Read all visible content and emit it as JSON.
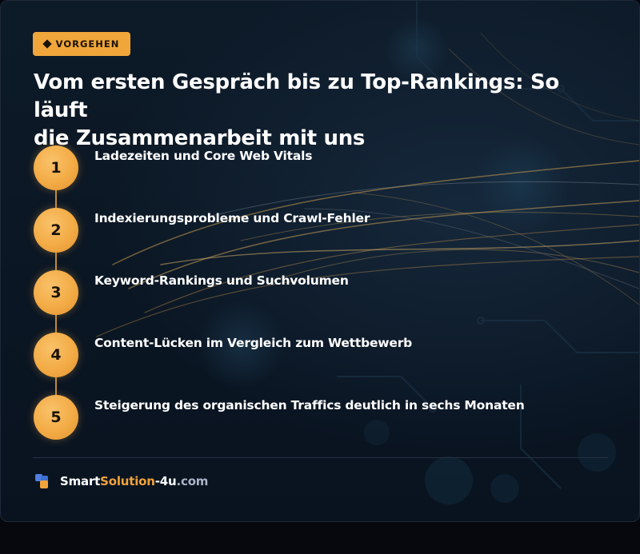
{
  "badge": {
    "icon": "diamond-icon",
    "label": "VORGEHEN"
  },
  "title": {
    "line1": "Vom ersten Gespräch bis zu Top-Rankings: So läuft",
    "line2": "die Zusammenarbeit mit uns"
  },
  "steps": [
    {
      "number": "1",
      "label": "Ladezeiten und Core Web Vitals"
    },
    {
      "number": "2",
      "label": "Indexierungsprobleme und Crawl-Fehler"
    },
    {
      "number": "3",
      "label": "Keyword-Rankings und Suchvolumen"
    },
    {
      "number": "4",
      "label": "Content-Lücken im Vergleich zum Wettbewerb"
    },
    {
      "number": "5",
      "label": "Steigerung des organischen Traffics deutlich in sechs Monaten"
    }
  ],
  "footer": {
    "logo_icon": "logo-blocks-icon",
    "brand_part1": "Smart",
    "brand_part2": "Solution",
    "brand_part3": "-4u",
    "brand_part4": ".com"
  },
  "colors": {
    "accent": "#f2a33b",
    "background": "#0b1724",
    "text": "#ffffff",
    "muted": "#a9b4c6"
  }
}
